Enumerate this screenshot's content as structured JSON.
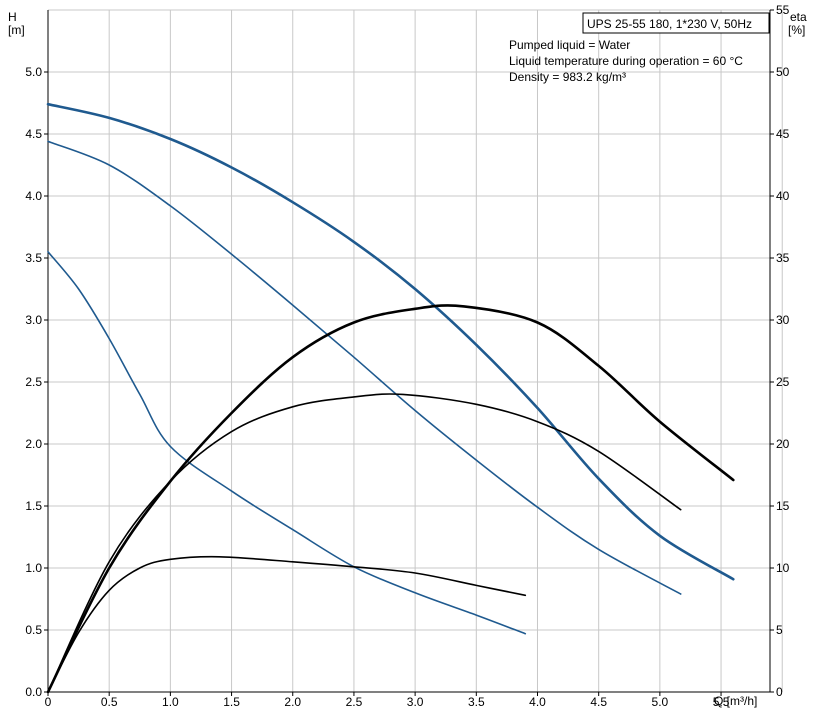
{
  "chart_data": {
    "type": "line",
    "x_axis": {
      "label": "Q [m³/h]",
      "range": [
        0,
        5.9
      ],
      "ticks": [
        "0",
        "0.5",
        "1.0",
        "1.5",
        "2.0",
        "2.5",
        "3.0",
        "3.5",
        "4.0",
        "4.5",
        "5.0",
        "5.5"
      ]
    },
    "y_axis_left": {
      "label": "H",
      "unit": "[m]",
      "range": [
        0,
        5.5
      ],
      "ticks": [
        "0.0",
        "0.5",
        "1.0",
        "1.5",
        "2.0",
        "2.5",
        "3.0",
        "3.5",
        "4.0",
        "4.5",
        "5.0"
      ]
    },
    "y_axis_right": {
      "label": "eta",
      "unit": "[%]",
      "range": [
        0,
        55
      ],
      "ticks": [
        "0",
        "5",
        "10",
        "15",
        "20",
        "25",
        "30",
        "35",
        "40",
        "45",
        "50",
        "55"
      ]
    },
    "grid": true,
    "info_box": {
      "title": "UPS 25-55 180, 1*230 V, 50Hz",
      "lines": [
        "Pumped liquid = Water",
        "Liquid temperature during operation = 60 °C",
        "Density = 983.2 kg/m³"
      ]
    },
    "series": [
      {
        "kind": "head",
        "axis": "left",
        "color": "#1f5a8f",
        "bold": true,
        "x": [
          0,
          0.5,
          1.0,
          1.5,
          2.0,
          2.5,
          3.0,
          3.5,
          4.0,
          4.5,
          5.0,
          5.6
        ],
        "y": [
          4.74,
          4.63,
          4.46,
          4.23,
          3.95,
          3.63,
          3.25,
          2.8,
          2.29,
          1.72,
          1.26,
          0.91
        ]
      },
      {
        "kind": "head",
        "axis": "left",
        "color": "#1f5a8f",
        "bold": false,
        "x": [
          0,
          0.5,
          1.0,
          1.5,
          2.0,
          2.5,
          3.0,
          3.5,
          4.0,
          4.5,
          5.17
        ],
        "y": [
          4.44,
          4.25,
          3.92,
          3.53,
          3.12,
          2.7,
          2.27,
          1.87,
          1.49,
          1.15,
          0.79
        ]
      },
      {
        "kind": "head",
        "axis": "left",
        "color": "#1f5a8f",
        "bold": false,
        "x": [
          0,
          0.25,
          0.5,
          0.75,
          1.0,
          1.5,
          2.0,
          2.5,
          3.0,
          3.5,
          3.9
        ],
        "y": [
          3.55,
          3.25,
          2.85,
          2.4,
          1.98,
          1.62,
          1.31,
          1.01,
          0.8,
          0.62,
          0.47
        ]
      },
      {
        "kind": "efficiency",
        "axis": "right",
        "color": "#000000",
        "bold": true,
        "x": [
          0,
          0.5,
          1.0,
          1.5,
          2.0,
          2.5,
          3.0,
          3.4,
          4.0,
          4.5,
          5.0,
          5.6
        ],
        "y": [
          0,
          10.0,
          17.0,
          22.5,
          27.0,
          29.8,
          30.9,
          31.1,
          29.8,
          26.3,
          21.8,
          17.1
        ]
      },
      {
        "kind": "efficiency",
        "axis": "right",
        "color": "#000000",
        "bold": false,
        "x": [
          0,
          0.5,
          1.0,
          1.5,
          2.0,
          2.5,
          2.9,
          3.5,
          4.0,
          4.5,
          5.17
        ],
        "y": [
          0,
          10.5,
          17.0,
          21.0,
          23.0,
          23.8,
          24.0,
          23.2,
          21.8,
          19.4,
          14.7
        ]
      },
      {
        "kind": "efficiency",
        "axis": "right",
        "color": "#000000",
        "bold": false,
        "x": [
          0,
          0.25,
          0.5,
          0.75,
          1.0,
          1.4,
          2.0,
          2.5,
          3.0,
          3.5,
          3.9
        ],
        "y": [
          0,
          4.8,
          8.2,
          10.0,
          10.7,
          10.9,
          10.5,
          10.1,
          9.6,
          8.6,
          7.8
        ]
      }
    ]
  }
}
